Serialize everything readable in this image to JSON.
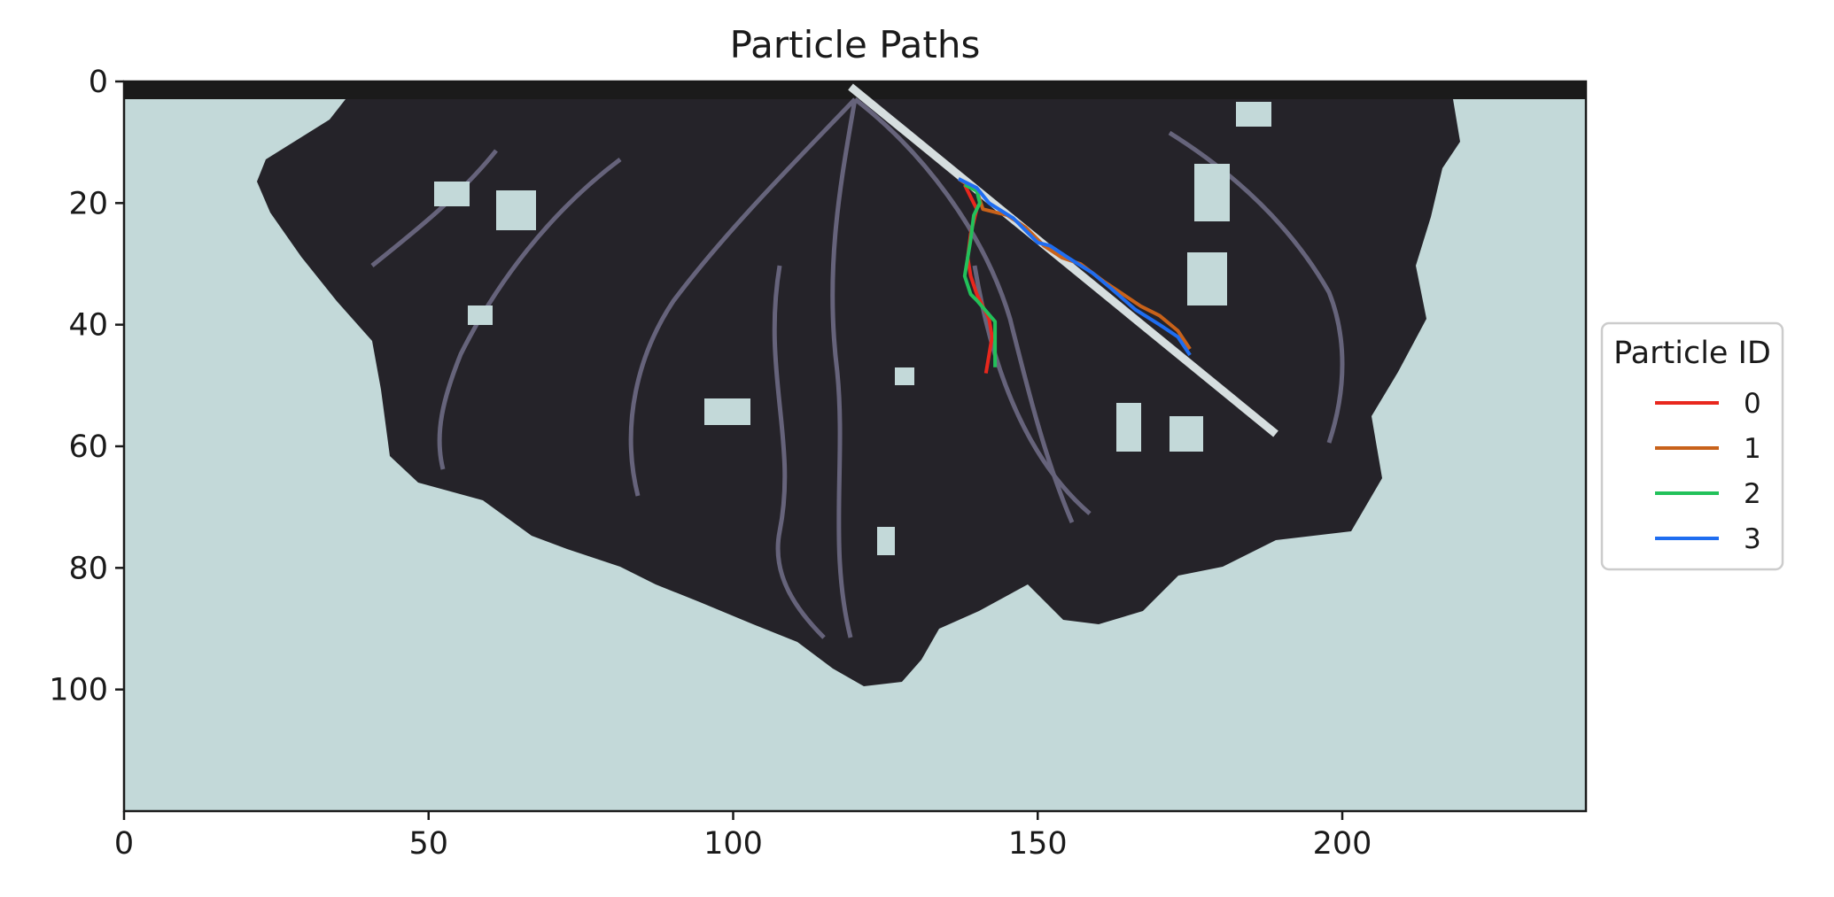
{
  "chart_data": {
    "type": "line",
    "title": "Particle Paths",
    "xlabel": "",
    "ylabel": "",
    "xlim": [
      0,
      240
    ],
    "ylim": [
      120,
      0
    ],
    "y_inverted": true,
    "x_ticks": [
      0,
      50,
      100,
      150,
      200
    ],
    "y_ticks": [
      0,
      20,
      40,
      60,
      80,
      100
    ],
    "background_image": "delta-channel-network",
    "legend": {
      "title": "Particle ID",
      "placement": "center-right-outside"
    },
    "series": [
      {
        "name": "0",
        "color": "#e8271d",
        "x": [
          138,
          139,
          140,
          139,
          138.5,
          139,
          140,
          141,
          142,
          142.5,
          142,
          141.5
        ],
        "y": [
          17,
          19,
          21,
          25,
          29,
          32,
          35,
          37,
          39,
          42,
          45,
          48
        ]
      },
      {
        "name": "1",
        "color": "#c8621a",
        "x": [
          137,
          140,
          141,
          145,
          148,
          151,
          154,
          157,
          161,
          164,
          167,
          170,
          173,
          175
        ],
        "y": [
          16,
          18,
          21,
          22,
          24,
          27,
          29,
          30,
          33,
          35,
          37,
          38.5,
          41,
          44
        ]
      },
      {
        "name": "2",
        "color": "#22c15a",
        "x": [
          138,
          140,
          140.5,
          139.5,
          139,
          138,
          139,
          140,
          143,
          143,
          143
        ],
        "y": [
          17,
          18,
          20,
          22,
          26,
          32,
          35,
          36,
          39.5,
          44,
          47
        ]
      },
      {
        "name": "3",
        "color": "#1f6df0",
        "x": [
          137,
          140,
          142,
          146,
          150,
          152,
          155,
          159,
          162,
          166,
          170,
          173,
          175
        ],
        "y": [
          16,
          17.5,
          20,
          22.5,
          26.5,
          27,
          29,
          31.5,
          34,
          37.5,
          40,
          42,
          45
        ]
      }
    ]
  }
}
